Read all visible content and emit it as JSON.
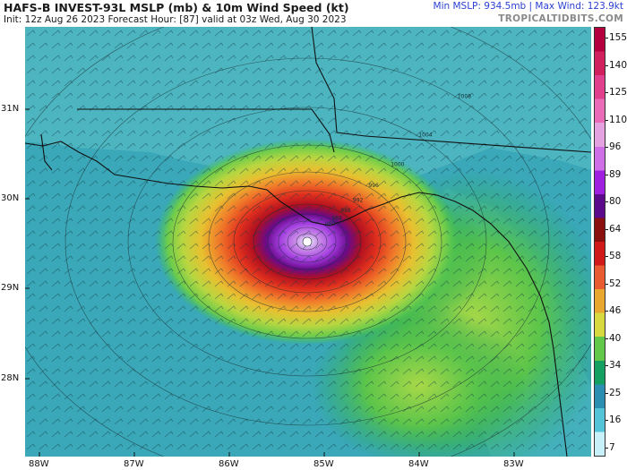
{
  "header": {
    "title": "HAFS-B INVEST-93L MSLP (mb) & 10m Wind Speed (kt)",
    "subtitle": "Init: 12z Aug 26 2023   Forecast Hour: [87]   valid at 03z Wed, Aug 30 2023",
    "stats": "Min MSLP: 934.5mb | Max Wind: 123.9kt",
    "credit": "TROPICALTIDBITS.COM"
  },
  "map": {
    "lat_labels": [
      "31N",
      "30N",
      "29N",
      "28N"
    ],
    "lon_labels": [
      "88W",
      "87W",
      "86W",
      "85W",
      "84W",
      "83W"
    ],
    "isobar_labels": [
      "1008",
      "1004",
      "1000",
      "996",
      "992",
      "988",
      "984",
      "980"
    ],
    "colors": {
      "ocean": "#3aa8b8",
      "land": "#4cb5c0",
      "border": "#111111"
    }
  },
  "colorbar": {
    "ticks": [
      "155",
      "140",
      "125",
      "110",
      "96",
      "89",
      "80",
      "64",
      "58",
      "52",
      "46",
      "40",
      "34",
      "25",
      "16",
      "7"
    ],
    "colors": [
      "#b5003f",
      "#d0205e",
      "#e0408c",
      "#ea6cb8",
      "#e4a3e0",
      "#cf6fe8",
      "#a020e0",
      "#5a0a8a",
      "#8a1010",
      "#d01a1a",
      "#e85a30",
      "#e8a830",
      "#d8d840",
      "#62c84a",
      "#14a060",
      "#2a8fb0",
      "#54c4d8",
      "#c8f0f8"
    ]
  }
}
